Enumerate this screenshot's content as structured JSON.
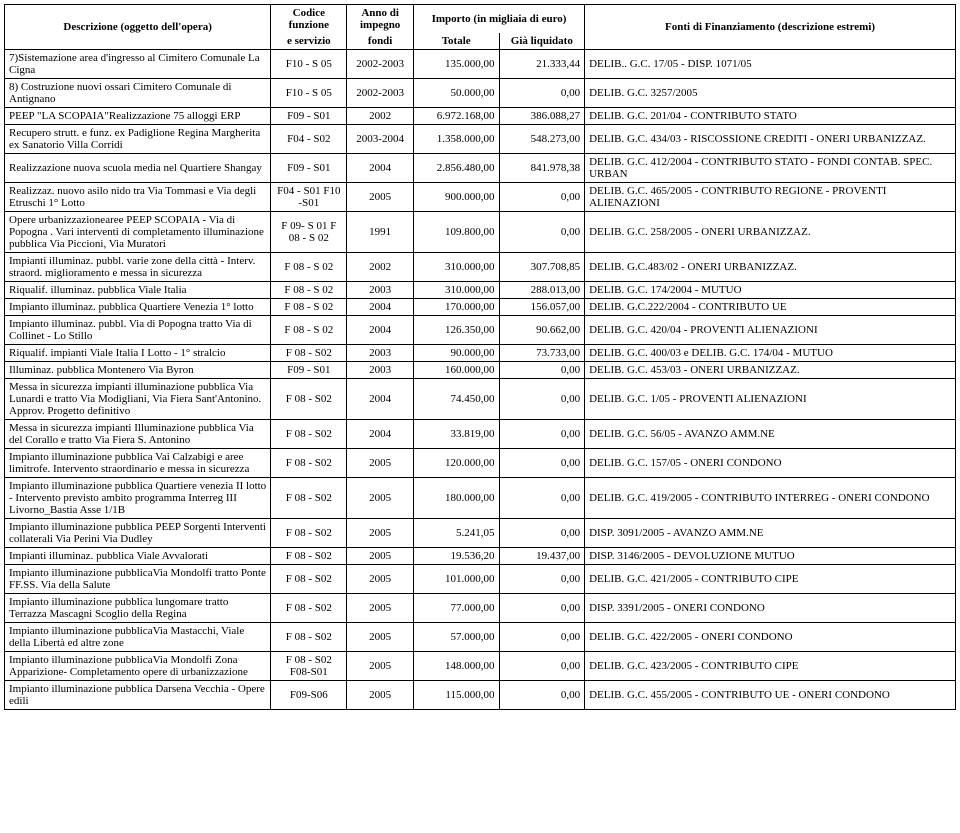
{
  "header": {
    "desc_l1": "Descrizione   (oggetto dell'opera)",
    "codice_l1": "Codice",
    "codice_l2": "funzione",
    "codice_l3": "e servizio",
    "anno_l1": "Anno di",
    "anno_l2": "impegno",
    "anno_l3": "fondi",
    "importo_l1": "Importo (in migliaia di euro)",
    "totale": "Totale",
    "liquidato": "Già liquidato",
    "fonti_l1": "Fonti di Finanziamento      (descrizione estremi)"
  },
  "colwidths": [
    "28%",
    "8%",
    "7%",
    "9%",
    "9%",
    "39%"
  ],
  "rows": [
    {
      "desc": "7)Sistemazione area d'ingresso al Cimitero Comunale La Cigna",
      "code": "F10 - S 05",
      "year": "2002-2003",
      "tot": "135.000,00",
      "liq": "21.333,44",
      "fonte": "DELIB.. G.C. 17/05 - DISP. 1071/05"
    },
    {
      "desc": "8) Costruzione nuovi ossari Cimitero Comunale di Antignano",
      "code": "F10 - S 05",
      "year": "2002-2003",
      "tot": "50.000,00",
      "liq": "0,00",
      "fonte": "DELIB. G.C. 3257/2005"
    },
    {
      "desc": "PEEP \"LA SCOPAIA\"Realizzazione 75 alloggi ERP",
      "code": "F09 - S01",
      "year": "2002",
      "tot": "6.972.168,00",
      "liq": "386.088,27",
      "fonte": "DELIB. G.C. 201/04 - CONTRIBUTO STATO"
    },
    {
      "desc": "Recupero strutt. e funz. ex Padiglione Regina Margherita ex Sanatorio Villa Corridi",
      "code": "F04 - S02",
      "year": "2003-2004",
      "tot": "1.358.000,00",
      "liq": "548.273,00",
      "fonte": "DELIB. G.C. 434/03 - RISCOSSIONE CREDITI - ONERI URBANIZZAZ."
    },
    {
      "desc": "Realizzazione nuova scuola media nel Quartiere Shangay",
      "code": "F09 - S01",
      "year": "2004",
      "tot": "2.856.480,00",
      "liq": "841.978,38",
      "fonte": "DELIB. G.C. 412/2004 - CONTRIBUTO STATO - FONDI CONTAB. SPEC. URBAN"
    },
    {
      "desc": "Realizzaz. nuovo asilo nido tra Via Tommasi e Via degli Etruschi 1° Lotto",
      "code": "F04 - S01 F10 -S01",
      "year": "2005",
      "tot": "900.000,00",
      "liq": "0,00",
      "fonte": "DELIB. G.C. 465/2005 - CONTRIBUTO REGIONE - PROVENTI ALIENAZIONI"
    },
    {
      "desc": "Opere urbanizzazionearee PEEP SCOPAIA - Via di Popogna . Vari interventi di completamento illuminazione pubblica Via Piccioni, Via Muratori",
      "code": "F 09- S 01 F 08 - S 02",
      "year": "1991",
      "tot": "109.800,00",
      "liq": "0,00",
      "fonte": "DELIB. G.C. 258/2005 - ONERI URBANIZZAZ."
    },
    {
      "desc": "Impianti illuminaz. pubbl. varie zone della città - Interv. straord. miglioramento e messa in sicurezza",
      "code": "F 08 - S 02",
      "year": "2002",
      "tot": "310.000,00",
      "liq": "307.708,85",
      "fonte": "DELIB. G.C.483/02 - ONERI URBANIZZAZ."
    },
    {
      "desc": "Riqualif. illuminaz. pubblica Viale Italia",
      "code": "F 08 - S 02",
      "year": "2003",
      "tot": "310.000,00",
      "liq": "288.013,00",
      "fonte": "DELIB. G.C. 174/2004 - MUTUO"
    },
    {
      "desc": "Impianto illuminaz. pubblica Quartiere Venezia 1° lotto",
      "code": "F 08 - S 02",
      "year": "2004",
      "tot": "170.000,00",
      "liq": "156.057,00",
      "fonte": "DELIB. G.C.222/2004 - CONTRIBUTO UE"
    },
    {
      "desc": "Impianto illuminaz. pubbl. Via di Popogna tratto Via di Collinet - Lo Stillo",
      "code": "F 08 - S 02",
      "year": "2004",
      "tot": "126.350,00",
      "liq": "90.662,00",
      "fonte": "DELIB. G.C. 420/04 - PROVENTI ALIENAZIONI"
    },
    {
      "desc": "Riqualif. impianti Viale Italia I Lotto - 1° stralcio",
      "code": "F 08 - S02",
      "year": "2003",
      "tot": "90.000,00",
      "liq": "73.733,00",
      "fonte": "DELIB. G.C. 400/03 e DELIB. G.C. 174/04 - MUTUO"
    },
    {
      "desc": "Illuminaz. pubblica Montenero Via Byron",
      "code": "F09 - S01",
      "year": "2003",
      "tot": "160.000,00",
      "liq": "0,00",
      "fonte": "DELIB. G.C. 453/03 - ONERI URBANIZZAZ."
    },
    {
      "desc": "Messa in sicurezza impianti illuminazione pubblica Via Lunardi e tratto Via Modigliani, Via Fiera Sant'Antonino. Approv. Progetto definitivo",
      "code": "F 08 - S02",
      "year": "2004",
      "tot": "74.450,00",
      "liq": "0,00",
      "fonte": "DELIB. G.C. 1/05 - PROVENTI ALIENAZIONI"
    },
    {
      "desc": "Messa in sicurezza impianti Illuminazione pubblica Via del Corallo e tratto Via Fiera S. Antonino",
      "code": "F 08 - S02",
      "year": "2004",
      "tot": "33.819,00",
      "liq": "0,00",
      "fonte": "DELIB. G.C. 56/05 - AVANZO AMM.NE"
    },
    {
      "desc": "Impianto illuminazione pubblica Vai Calzabigi e aree limitrofe. Intervento straordinario e messa in sicurezza",
      "code": "F 08 - S02",
      "year": "2005",
      "tot": "120.000,00",
      "liq": "0,00",
      "fonte": "DELIB. G.C. 157/05 - ONERI CONDONO"
    },
    {
      "desc": "Impianto illuminazione pubblica Quartiere venezia II lotto - Intervento previsto ambito programma Interreg III Livorno_Bastia Asse 1/1B",
      "code": "F 08 - S02",
      "year": "2005",
      "tot": "180.000,00",
      "liq": "0,00",
      "fonte": "DELIB. G.C. 419/2005 - CONTRIBUTO INTERREG - ONERI CONDONO"
    },
    {
      "desc": "Impianto illuminazione pubblica PEEP Sorgenti Interventi collaterali Via Perini Via Dudley",
      "code": "F 08 - S02",
      "year": "2005",
      "tot": "5.241,05",
      "liq": "0,00",
      "fonte": "DISP. 3091/2005 - AVANZO AMM.NE"
    },
    {
      "desc": "Impianti illuminaz. pubblica Viale Avvalorati",
      "code": "F 08 - S02",
      "year": "2005",
      "tot": "19.536,20",
      "liq": "19.437,00",
      "fonte": "DISP. 3146/2005 - DEVOLUZIONE MUTUO"
    },
    {
      "desc": "Impianto illuminazione pubblicaVia Mondolfi tratto Ponte FF.SS. Via della Salute",
      "code": "F 08 - S02",
      "year": "2005",
      "tot": "101.000,00",
      "liq": "0,00",
      "fonte": "DELIB. G.C. 421/2005 - CONTRIBUTO CIPE"
    },
    {
      "desc": "Impianto illuminazione pubblica lungomare tratto Terrazza Mascagni Scoglio della Regina",
      "code": "F 08 - S02",
      "year": "2005",
      "tot": "77.000,00",
      "liq": "0,00",
      "fonte": "DISP. 3391/2005 - ONERI CONDONO"
    },
    {
      "desc": "Impianto illuminazione pubblicaVia Mastacchi, Viale della Libertà ed altre zone",
      "code": "F 08 - S02",
      "year": "2005",
      "tot": "57.000,00",
      "liq": "0,00",
      "fonte": "DELIB. G.C. 422/2005 - ONERI CONDONO"
    },
    {
      "desc": "Impianto illuminazione pubblicaVia Mondolfi Zona Apparizione- Completamento opere di urbanizzazione",
      "code": "F 08 - S02 F08-S01",
      "year": "2005",
      "tot": "148.000,00",
      "liq": "0,00",
      "fonte": "DELIB. G.C. 423/2005 - CONTRIBUTO CIPE"
    },
    {
      "desc": "Impianto illuminazione pubblica Darsena Vecchia - Opere edili",
      "code": "F09-S06",
      "year": "2005",
      "tot": "115.000,00",
      "liq": "0,00",
      "fonte": "DELIB. G.C. 455/2005 - CONTRIBUTO UE - ONERI CONDONO"
    }
  ]
}
